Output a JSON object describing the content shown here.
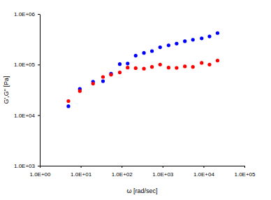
{
  "chart_data": {
    "type": "scatter",
    "x_label": "ω [rad/sec]",
    "y_label": "G',G'' [Pa]",
    "log": true,
    "grid": false,
    "marker": "circle",
    "x": [
      5,
      9.5,
      20,
      35,
      55,
      90,
      140,
      220,
      350,
      550,
      870,
      1400,
      2200,
      3500,
      5500,
      9000,
      14000,
      22000
    ],
    "series": [
      {
        "color": "#0000ff",
        "values": [
          15000,
          33000,
          46000,
          47000,
          66000,
          102000,
          105000,
          150000,
          170000,
          185000,
          220000,
          240000,
          260000,
          290000,
          310000,
          330000,
          360000,
          420000
        ]
      },
      {
        "color": "#ff0000",
        "values": [
          19000,
          30000,
          42000,
          57000,
          63000,
          70000,
          87000,
          85000,
          83000,
          90000,
          100000,
          87000,
          86000,
          92000,
          90000,
          108000,
          100000,
          120000
        ]
      }
    ],
    "xlim": [
      1,
      100000
    ],
    "ylim": [
      1000,
      1000000
    ],
    "xticks": [
      {
        "value": 1,
        "label": "1.0E+00"
      },
      {
        "value": 10,
        "label": "1.0E+01"
      },
      {
        "value": 100,
        "label": "1.0E+02"
      },
      {
        "value": 1000,
        "label": "1.0E+03"
      },
      {
        "value": 10000,
        "label": "1.0E+04"
      },
      {
        "value": 100000,
        "label": "1.0E+05"
      }
    ],
    "yticks": [
      {
        "value": 1000,
        "label": "1.0E+03"
      },
      {
        "value": 10000,
        "label": "1.0E+04"
      },
      {
        "value": 100000,
        "label": "1.0E+05"
      },
      {
        "value": 1000000,
        "label": "1.0E+06"
      }
    ]
  }
}
